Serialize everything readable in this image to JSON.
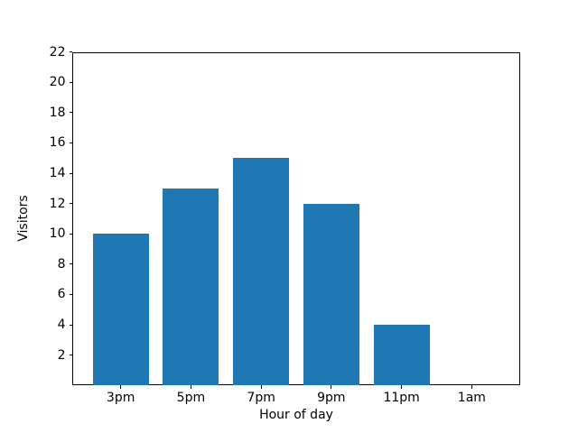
{
  "chart_data": {
    "type": "bar",
    "title": "",
    "xlabel": "Hour of day",
    "ylabel": "Visitors",
    "categories": [
      "3pm",
      "5pm",
      "7pm",
      "9pm",
      "11pm",
      "1am"
    ],
    "values": [
      10,
      13,
      15,
      12,
      4,
      0
    ],
    "ylim": [
      0,
      22
    ],
    "yticks": [
      2,
      4,
      6,
      8,
      10,
      12,
      14,
      16,
      18,
      20,
      22
    ],
    "bar_color": "#1f77b4",
    "bar_width_fraction": 0.8,
    "axis_color": "#000000",
    "background_color": "#ffffff",
    "grid": false,
    "legend": "none"
  }
}
